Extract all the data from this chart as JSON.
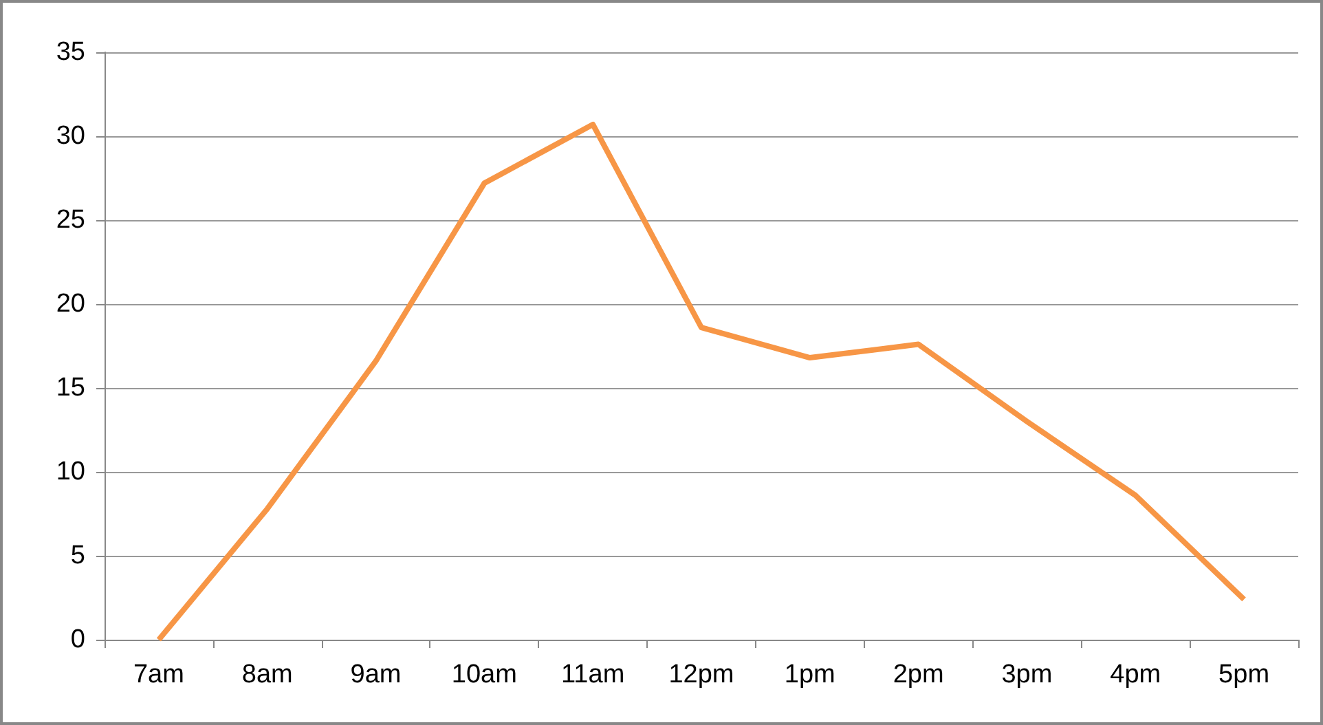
{
  "chart_data": {
    "type": "line",
    "categories": [
      "7am",
      "8am",
      "9am",
      "10am",
      "11am",
      "12pm",
      "1pm",
      "2pm",
      "3pm",
      "4pm",
      "5pm"
    ],
    "series": [
      {
        "color": "#f79646",
        "values": [
          0,
          7.8,
          16.6,
          27.2,
          30.7,
          18.6,
          16.8,
          17.6,
          13.0,
          8.6,
          2.4
        ]
      }
    ],
    "ylim": [
      0,
      35
    ],
    "yticks": [
      0,
      5,
      10,
      15,
      20,
      25,
      30,
      35
    ],
    "grid": "y",
    "marker": "none",
    "line_style": "solid"
  }
}
